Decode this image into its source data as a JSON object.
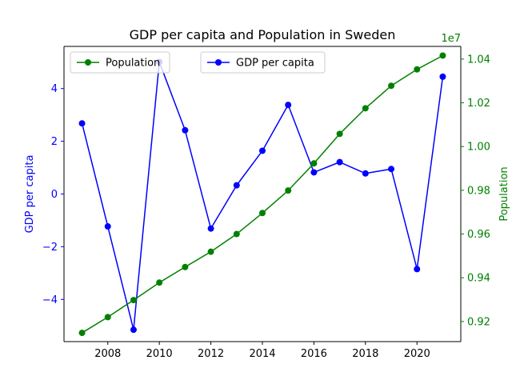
{
  "chart_data": {
    "type": "line",
    "title": "GDP per capita and Population in Sweden",
    "x": [
      2007,
      2008,
      2009,
      2010,
      2011,
      2012,
      2013,
      2014,
      2015,
      2016,
      2017,
      2018,
      2019,
      2020,
      2021
    ],
    "xticks": [
      2008,
      2010,
      2012,
      2014,
      2016,
      2018,
      2020
    ],
    "xlim": [
      2006.3,
      2021.7
    ],
    "grid": false,
    "left_axis": {
      "label": "GDP per capita",
      "color": "#0000ff",
      "ylim": [
        -5.6,
        5.6
      ],
      "ticks": [
        -4,
        -2,
        0,
        2,
        4
      ],
      "tick_labels": [
        "−4",
        "−2",
        "0",
        "2",
        "4"
      ]
    },
    "right_axis": {
      "label": "Population",
      "color": "#008000",
      "ylim": [
        9108000.0,
        10458000.0
      ],
      "ticks": [
        9200000.0,
        9400000.0,
        9600000.0,
        9800000.0,
        10000000.0,
        10200000.0,
        10400000.0
      ],
      "tick_labels": [
        "0.92",
        "0.94",
        "0.96",
        "0.98",
        "1.00",
        "1.02",
        "1.04"
      ],
      "offset_text": "1e7"
    },
    "series": [
      {
        "name": "GDP per capita",
        "axis": "left",
        "color": "#0000ff",
        "values": [
          2.68,
          -1.23,
          -5.15,
          5.01,
          2.42,
          -1.31,
          0.33,
          1.64,
          3.38,
          0.82,
          1.21,
          0.78,
          0.95,
          -2.85,
          4.45
        ]
      },
      {
        "name": "Population",
        "axis": "right",
        "color": "#008000",
        "values": [
          9148000,
          9220000,
          9298000,
          9378000,
          9449000,
          9519000,
          9600000,
          9696000,
          9799000,
          9923000,
          10058000,
          10175000,
          10278000,
          10353000,
          10416000
        ]
      }
    ],
    "legend": [
      {
        "label": "Population",
        "color": "#008000",
        "placement": "upper-left"
      },
      {
        "label": "GDP per capita",
        "color": "#0000ff",
        "placement": "upper-center"
      }
    ]
  }
}
